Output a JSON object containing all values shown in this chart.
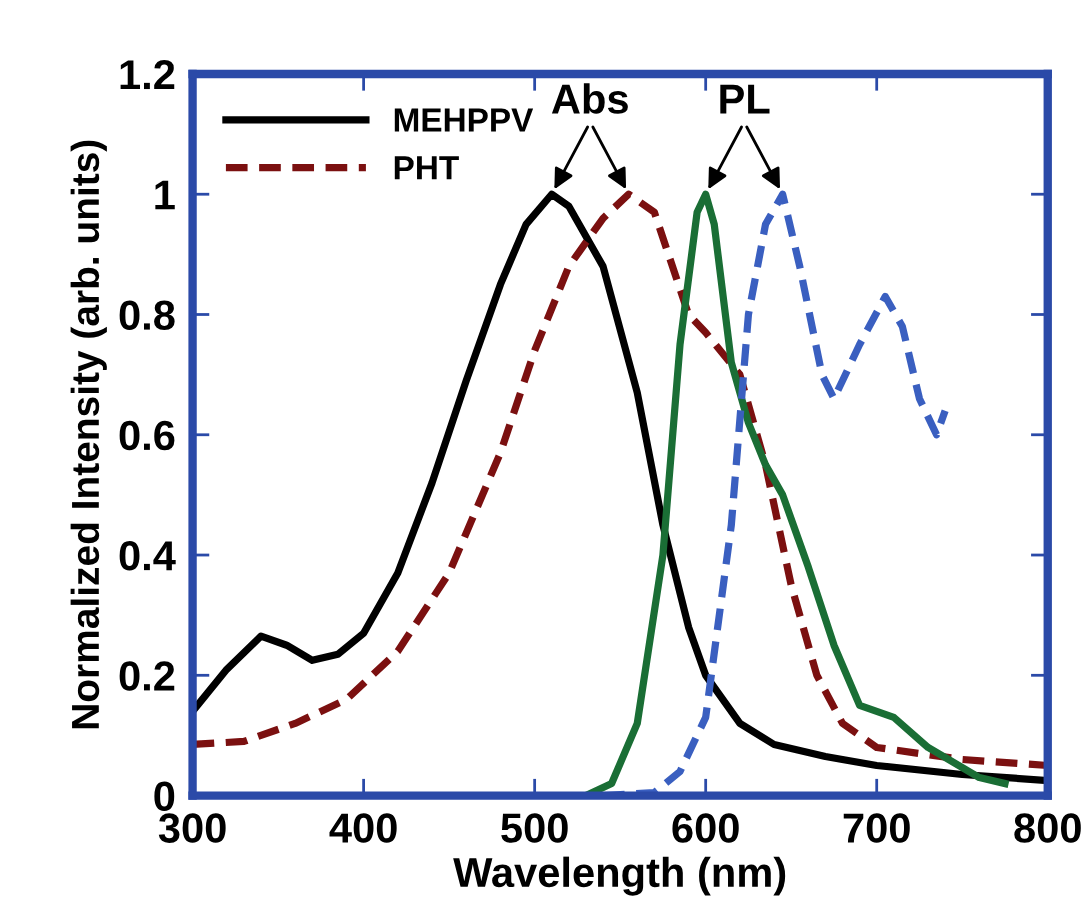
{
  "chart_data": {
    "type": "line",
    "xlabel": "Wavelength (nm)",
    "ylabel": "Normalized Intensity (arb. units)",
    "xlim": [
      300,
      800
    ],
    "ylim": [
      0,
      1.2
    ],
    "xticks": [
      300,
      400,
      500,
      600,
      700,
      800
    ],
    "yticks": [
      0,
      0.2,
      0.4,
      0.6,
      0.8,
      1,
      1.2
    ],
    "grid": false,
    "legend": "top left",
    "marker": "none",
    "annotations": [
      {
        "text": "Abs",
        "x": 510,
        "y": 1.0
      },
      {
        "text": "PL",
        "x": 600,
        "y": 1.0
      }
    ],
    "series": [
      {
        "name": "MEHPPV",
        "color": "#000000",
        "line_style": "solid",
        "x": [
          300,
          320,
          340,
          355,
          370,
          385,
          400,
          420,
          440,
          460,
          480,
          495,
          510,
          520,
          540,
          560,
          575,
          590,
          600,
          620,
          640,
          670,
          700,
          750,
          800
        ],
        "values": [
          0.14,
          0.21,
          0.265,
          0.25,
          0.225,
          0.235,
          0.27,
          0.37,
          0.52,
          0.69,
          0.85,
          0.95,
          1.0,
          0.98,
          0.88,
          0.67,
          0.45,
          0.28,
          0.2,
          0.12,
          0.085,
          0.065,
          0.05,
          0.035,
          0.025
        ]
      },
      {
        "name": "PHT",
        "color": "#7b1010",
        "line_style": "dashed",
        "x": [
          300,
          330,
          360,
          390,
          420,
          450,
          480,
          500,
          520,
          540,
          555,
          570,
          590,
          600,
          620,
          635,
          650,
          665,
          680,
          700,
          750,
          800
        ],
        "values": [
          0.085,
          0.09,
          0.12,
          0.16,
          0.24,
          0.37,
          0.57,
          0.74,
          0.88,
          0.96,
          1.0,
          0.97,
          0.8,
          0.77,
          0.7,
          0.55,
          0.35,
          0.2,
          0.12,
          0.08,
          0.06,
          0.05
        ]
      },
      {
        "color": "#1a6e35",
        "line_style": "solid",
        "x": [
          530,
          545,
          560,
          575,
          585,
          595,
          600,
          605,
          615,
          625,
          635,
          645,
          660,
          675,
          690,
          710,
          730,
          760,
          775
        ],
        "values": [
          0.0,
          0.02,
          0.12,
          0.4,
          0.75,
          0.97,
          1.0,
          0.95,
          0.72,
          0.62,
          0.55,
          0.5,
          0.38,
          0.25,
          0.15,
          0.13,
          0.08,
          0.03,
          0.02
        ]
      },
      {
        "color": "#3a5fc0",
        "line_style": "dashed",
        "x": [
          540,
          570,
          585,
          600,
          615,
          625,
          635,
          645,
          655,
          668,
          675,
          690,
          705,
          715,
          725,
          735,
          740
        ],
        "values": [
          0.0,
          0.005,
          0.04,
          0.13,
          0.45,
          0.8,
          0.95,
          1.0,
          0.88,
          0.7,
          0.66,
          0.75,
          0.83,
          0.78,
          0.66,
          0.6,
          0.64
        ]
      }
    ]
  }
}
